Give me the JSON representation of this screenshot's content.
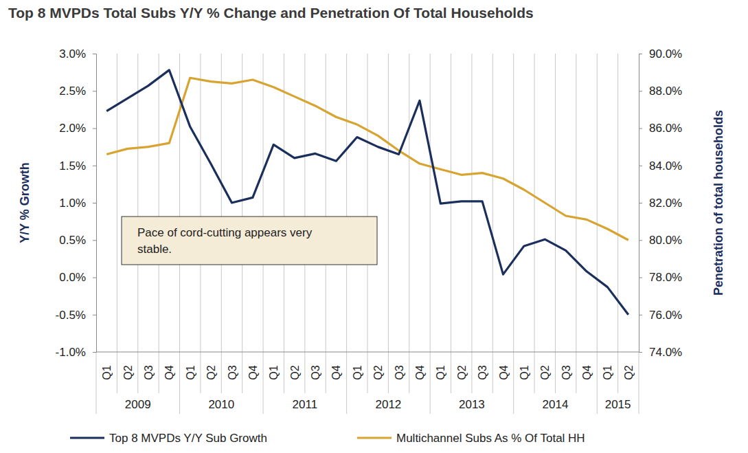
{
  "chart_data": {
    "type": "line",
    "title": "Top 8 MVPDs Total Subs Y/Y % Change and Penetration Of Total Households",
    "y_label": "Y/Y % Growth",
    "y2_label": "Penetration of total households",
    "categories": [
      "Q1",
      "Q2",
      "Q3",
      "Q4",
      "Q1",
      "Q2",
      "Q3",
      "Q4",
      "Q1",
      "Q2",
      "Q3",
      "Q4",
      "Q1",
      "Q2",
      "Q3",
      "Q4",
      "Q1",
      "Q2",
      "Q3",
      "Q4",
      "Q1",
      "Q2",
      "Q3",
      "Q4",
      "Q1",
      "Q2"
    ],
    "category_groups": [
      {
        "name": "2009",
        "span": 4
      },
      {
        "name": "2010",
        "span": 4
      },
      {
        "name": "2011",
        "span": 4
      },
      {
        "name": "2012",
        "span": 4
      },
      {
        "name": "2013",
        "span": 4
      },
      {
        "name": "2014",
        "span": 4
      },
      {
        "name": "2015",
        "span": 2
      }
    ],
    "series": [
      {
        "name": "Top 8 MVPDs Y/Y Sub Growth",
        "color": "#1b2f5c",
        "axis": "y",
        "values": [
          2.23,
          2.4,
          2.57,
          2.78,
          2.02,
          1.52,
          1.0,
          1.07,
          1.78,
          1.6,
          1.66,
          1.56,
          1.88,
          1.75,
          1.65,
          2.37,
          0.99,
          1.02,
          1.02,
          0.04,
          0.42,
          0.51,
          0.36,
          0.08,
          -0.13,
          -0.5
        ]
      },
      {
        "name": "Multichannel Subs As % Of Total HH",
        "color": "#d8a431",
        "axis": "y2",
        "values": [
          84.6,
          84.9,
          85.0,
          85.2,
          88.7,
          88.5,
          88.4,
          88.6,
          88.2,
          87.7,
          87.2,
          86.6,
          86.2,
          85.6,
          84.8,
          84.1,
          83.8,
          83.5,
          83.6,
          83.3,
          82.7,
          82.0,
          81.3,
          81.1,
          80.6,
          80.0
        ]
      }
    ],
    "ylim": [
      -1.0,
      3.0
    ],
    "yticks": [
      {
        "value": -1.0,
        "label": "-1.0%"
      },
      {
        "value": -0.5,
        "label": "-0.5%"
      },
      {
        "value": 0.0,
        "label": "0.0%"
      },
      {
        "value": 0.5,
        "label": "0.5%"
      },
      {
        "value": 1.0,
        "label": "1.0%"
      },
      {
        "value": 1.5,
        "label": "1.5%"
      },
      {
        "value": 2.0,
        "label": "2.0%"
      },
      {
        "value": 2.5,
        "label": "2.5%"
      },
      {
        "value": 3.0,
        "label": "3.0%"
      }
    ],
    "y2lim": [
      74.0,
      90.0
    ],
    "y2ticks": [
      {
        "value": 74.0,
        "label": "74.0%"
      },
      {
        "value": 76.0,
        "label": "76.0%"
      },
      {
        "value": 78.0,
        "label": "78.0%"
      },
      {
        "value": 80.0,
        "label": "80.0%"
      },
      {
        "value": 82.0,
        "label": "82.0%"
      },
      {
        "value": 84.0,
        "label": "84.0%"
      },
      {
        "value": 86.0,
        "label": "86.0%"
      },
      {
        "value": 88.0,
        "label": "88.0%"
      },
      {
        "value": 90.0,
        "label": "90.0%"
      }
    ],
    "annotation": {
      "lines": [
        "Pace of cord-cutting appears very",
        "stable."
      ]
    },
    "grid": true,
    "legend": "bottom"
  }
}
